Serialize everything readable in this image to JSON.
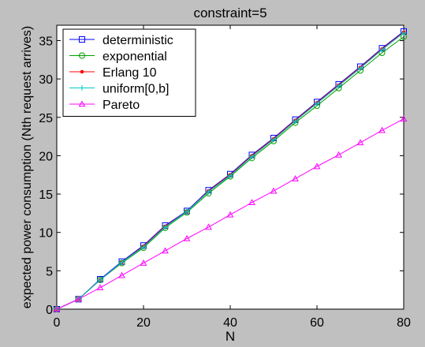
{
  "chart_data": {
    "type": "line",
    "title": "constraint=5",
    "xlabel": "N",
    "ylabel": "expected power consumption (Nth request arrives)",
    "xlim": [
      0,
      80
    ],
    "ylim": [
      0,
      37
    ],
    "xticks": [
      0,
      20,
      40,
      60,
      80
    ],
    "yticks": [
      0,
      5,
      10,
      15,
      20,
      25,
      30,
      35
    ],
    "grid": false,
    "legend_position": "top-left",
    "x": [
      0,
      5,
      10,
      15,
      20,
      25,
      30,
      35,
      40,
      45,
      50,
      55,
      60,
      65,
      70,
      75,
      80
    ],
    "series": [
      {
        "name": "deterministic",
        "color": "#0000ff",
        "marker": "square",
        "values": [
          0,
          1.3,
          3.9,
          6.2,
          8.3,
          10.9,
          12.8,
          15.5,
          17.6,
          20.1,
          22.3,
          24.7,
          27.0,
          29.3,
          31.6,
          34.0,
          36.2
        ]
      },
      {
        "name": "exponential",
        "color": "#00a000",
        "marker": "circle",
        "values": [
          0,
          1.3,
          3.8,
          6.0,
          8.0,
          10.6,
          12.6,
          15.1,
          17.3,
          19.7,
          21.9,
          24.3,
          26.5,
          28.8,
          31.1,
          33.4,
          35.5
        ]
      },
      {
        "name": "Erlang 10",
        "color": "#ff0000",
        "marker": "dot",
        "values": [
          0,
          1.3,
          3.8,
          6.1,
          8.2,
          10.8,
          12.7,
          15.4,
          17.5,
          20.0,
          22.2,
          24.6,
          26.9,
          29.2,
          31.5,
          33.9,
          36.1
        ]
      },
      {
        "name": "uniform[0,b]",
        "color": "#00c8c8",
        "marker": "plus",
        "values": [
          0,
          1.3,
          3.8,
          6.1,
          8.1,
          10.7,
          12.7,
          15.3,
          17.4,
          19.9,
          22.1,
          24.5,
          26.8,
          29.1,
          31.4,
          33.8,
          36.0
        ]
      },
      {
        "name": "Pareto",
        "color": "#ff00ff",
        "marker": "triangle",
        "values": [
          0,
          1.3,
          2.8,
          4.4,
          6.0,
          7.6,
          9.2,
          10.7,
          12.3,
          13.9,
          15.4,
          17.0,
          18.6,
          20.1,
          21.7,
          23.3,
          24.8
        ]
      }
    ]
  }
}
